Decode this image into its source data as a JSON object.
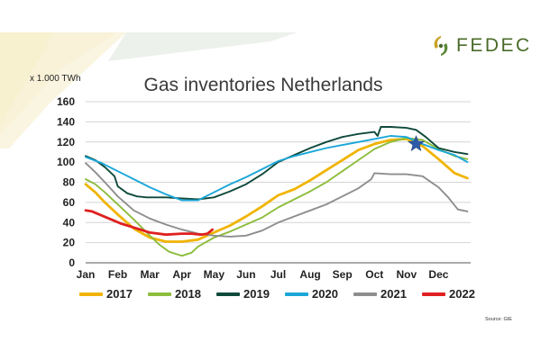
{
  "header": {
    "logo_text": "FEDEC",
    "units_label": "x 1.000 TWh",
    "source": "Source: GIE"
  },
  "colors": {
    "logo_gold": "#c9a227",
    "logo_green": "#5d8a3a",
    "logo_text": "#4a6b2a",
    "deco_fill": "#f6efc8"
  },
  "chart_data": {
    "type": "line",
    "title": "Gas inventories Netherlands",
    "xlabel": "",
    "ylabel": "x 1.000 TWh",
    "categories": [
      "Jan",
      "Feb",
      "Mar",
      "Apr",
      "May",
      "Jun",
      "Jul",
      "Aug",
      "Sep",
      "Oct",
      "Nov",
      "Dec"
    ],
    "ylim": [
      0,
      160
    ],
    "yticks": [
      0,
      20,
      40,
      60,
      80,
      100,
      120,
      140,
      160
    ],
    "grid": true,
    "legend_position": "bottom",
    "series": [
      {
        "name": "2017",
        "color": "#f0b400",
        "x": [
          0,
          0.3,
          0.6,
          1.0,
          1.5,
          2.0,
          2.5,
          3.0,
          3.5,
          4.0,
          4.5,
          5.0,
          5.5,
          6.0,
          6.5,
          7.0,
          7.5,
          8.0,
          8.5,
          9.0,
          9.5,
          10.0,
          10.5,
          11.0,
          11.5,
          11.9
        ],
        "values": [
          78,
          70,
          60,
          48,
          34,
          25,
          21,
          21,
          23,
          30,
          37,
          46,
          56,
          67,
          73,
          82,
          92,
          102,
          112,
          118,
          122,
          123,
          116,
          103,
          89,
          84
        ]
      },
      {
        "name": "2018",
        "color": "#8dbd3c",
        "x": [
          0,
          0.3,
          0.6,
          1.0,
          1.5,
          2.0,
          2.3,
          2.6,
          2.9,
          3.0,
          3.3,
          3.5,
          4.0,
          4.5,
          5.0,
          5.5,
          6.0,
          6.5,
          7.0,
          7.5,
          8.0,
          8.5,
          9.0,
          9.5,
          10.0,
          10.5,
          11.0,
          11.5,
          11.9
        ],
        "values": [
          83,
          78,
          70,
          58,
          43,
          27,
          18,
          11,
          8,
          7,
          10,
          16,
          25,
          31,
          38,
          45,
          55,
          63,
          71,
          80,
          91,
          102,
          113,
          120,
          124,
          122,
          113,
          106,
          103
        ]
      },
      {
        "name": "2019",
        "color": "#0f4a3c",
        "x": [
          0,
          0.3,
          0.6,
          0.9,
          1.0,
          1.3,
          1.6,
          1.9,
          2.0,
          2.5,
          3.0,
          3.5,
          4.0,
          4.5,
          5.0,
          5.5,
          6.0,
          6.5,
          7.0,
          7.5,
          8.0,
          8.5,
          9.0,
          9.1,
          9.2,
          9.5,
          10.0,
          10.3,
          10.6,
          11.0,
          11.5,
          11.9
        ],
        "values": [
          106,
          102,
          95,
          86,
          76,
          69,
          66,
          65,
          65,
          65,
          64,
          63,
          65,
          71,
          78,
          88,
          100,
          107,
          114,
          120,
          125,
          128,
          130,
          126,
          135,
          135,
          134,
          132,
          125,
          114,
          110,
          108
        ]
      },
      {
        "name": "2020",
        "color": "#1aa7d8",
        "x": [
          0,
          0.5,
          1.0,
          1.5,
          2.0,
          2.5,
          3.0,
          3.5,
          4.0,
          4.5,
          5.0,
          5.5,
          6.0,
          6.5,
          7.0,
          7.5,
          8.0,
          8.5,
          9.0,
          9.5,
          10.0,
          10.5,
          11.0,
          11.5,
          11.9
        ],
        "values": [
          105,
          99,
          91,
          83,
          75,
          68,
          62,
          62,
          70,
          78,
          85,
          93,
          101,
          106,
          110,
          114,
          117,
          120,
          123,
          126,
          125,
          118,
          112,
          107,
          100
        ]
      },
      {
        "name": "2021",
        "color": "#8e8e8e",
        "x": [
          0,
          0.3,
          0.6,
          1.0,
          1.5,
          2.0,
          2.5,
          3.0,
          3.5,
          4.0,
          4.5,
          5.0,
          5.5,
          6.0,
          6.5,
          7.0,
          7.5,
          8.0,
          8.5,
          8.9,
          9.0,
          9.5,
          10.0,
          10.5,
          11.0,
          11.3,
          11.6,
          11.9
        ],
        "values": [
          99,
          90,
          80,
          66,
          52,
          44,
          38,
          33,
          29,
          27,
          26,
          27,
          32,
          40,
          46,
          52,
          58,
          66,
          74,
          83,
          89,
          88,
          88,
          86,
          75,
          65,
          53,
          51
        ]
      },
      {
        "name": "2022",
        "color": "#e02020",
        "x": [
          0,
          0.2,
          0.5,
          0.8,
          1.1,
          1.5,
          2.0,
          2.5,
          3.0,
          3.3,
          3.6,
          3.8,
          3.95
        ],
        "values": [
          52,
          51,
          47,
          43,
          39,
          35,
          30,
          28,
          29,
          29,
          28,
          29,
          33
        ]
      }
    ],
    "annotations": [
      {
        "type": "star",
        "label": "",
        "x": 10.3,
        "y": 118,
        "color": "#2d5aa8"
      }
    ]
  }
}
